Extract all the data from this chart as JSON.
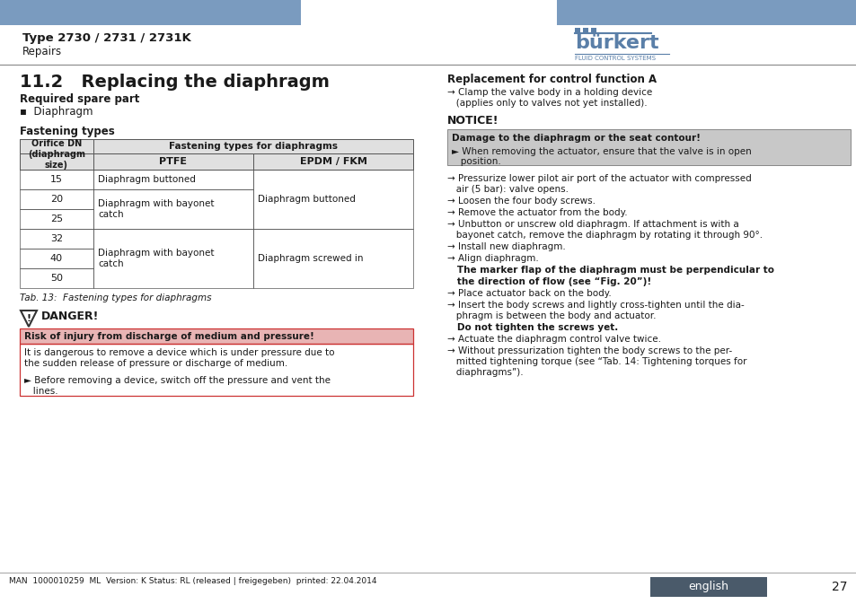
{
  "title": "Type 2730 / 2731 / 2731K",
  "subtitle": "Repairs",
  "header_bar_color": "#7a9bbf",
  "burkert_color": "#5a7fa8",
  "section_title": "11.2   Replacing the diaphragm",
  "req_spare": "Required spare part",
  "spare_item": "▪  Diaphragm",
  "fastening_title": "Fastening types",
  "tab_caption": "Tab. 13:  Fastening types for diaphragms",
  "danger_title": "DANGER!",
  "danger_box_color": "#e8b4b4",
  "danger_border_color": "#cc3333",
  "danger_header": "Risk of injury from discharge of medium and pressure!",
  "danger_text1": "It is dangerous to remove a device which is under pressure due to\nthe sudden release of pressure or discharge of medium.",
  "danger_bullet": "► Before removing a device, switch off the pressure and vent the\n   lines.",
  "right_col_title": "Replacement for control function A",
  "right_arrow1_line1": "→ Clamp the valve body in a holding device",
  "right_arrow1_line2": "   (applies only to valves not yet installed).",
  "notice_title": "NOTICE!",
  "notice_box_color": "#c8c8c8",
  "notice_header": "Damage to the diaphragm or the seat contour!",
  "notice_bullet_line1": "► When removing the actuator, ensure that the valve is in open",
  "notice_bullet_line2": "   position.",
  "right_arrows": [
    [
      "→ Pressurize lower pilot air port of the actuator with compressed",
      "   air (5 bar): valve opens."
    ],
    [
      "→ Loosen the four body screws."
    ],
    [
      "→ Remove the actuator from the body."
    ],
    [
      "→ Unbutton or unscrew old diaphragm. If attachment is with a",
      "   bayonet catch, remove the diaphragm by rotating it through 90°."
    ],
    [
      "→ Install new diaphragm."
    ],
    [
      "→ Align diaphragm."
    ],
    [
      "bold:   The marker flap of the diaphragm must be perpendicular to"
    ],
    [
      "bold:   the direction of flow (see “Fig. 20”)!"
    ],
    [
      "→ Place actuator back on the body."
    ],
    [
      "→ Insert the body screws and lightly cross-tighten until the dia-",
      "   phragm is between the body and actuator."
    ],
    [
      "bold:   Do not tighten the screws yet."
    ],
    [
      "→ Actuate the diaphragm control valve twice."
    ],
    [
      "→ Without pressurization tighten the body screws to the per-",
      "   mitted tightening torque (see “Tab. 14: Tightening torques for",
      "   diaphragms”)."
    ]
  ],
  "footer_text": "MAN  1000010259  ML  Version: K Status: RL (released | freigegeben)  printed: 22.04.2014",
  "footer_lang": "english",
  "footer_page": "27",
  "footer_lang_bg": "#4a5a6a",
  "text_color": "#1a1a1a",
  "line_color": "#888888",
  "bg_color": "#ffffff"
}
